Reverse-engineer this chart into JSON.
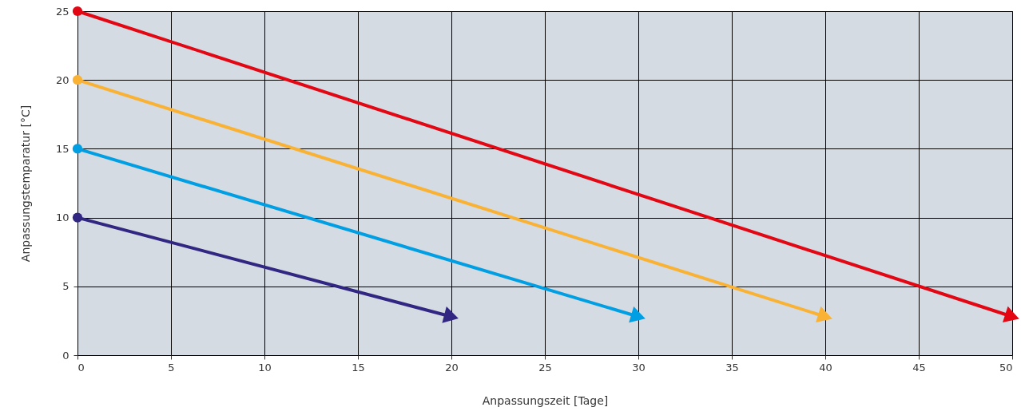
{
  "chart_data": {
    "type": "line",
    "xlabel": "Anpassungszeit [Tage]",
    "ylabel": "Anpassungstemparatur [°C]",
    "xlim": [
      0,
      50
    ],
    "xticks": [
      0,
      5,
      10,
      15,
      20,
      25,
      30,
      35,
      40,
      45,
      50
    ],
    "ylim": [
      0,
      25
    ],
    "yticks": [
      0,
      5,
      10,
      15,
      20,
      25
    ],
    "grid": true,
    "marker": "circle",
    "line_style": "solid",
    "series": [
      {
        "color": "#e30613",
        "x": [
          0,
          50
        ],
        "values": [
          25,
          2.8
        ]
      },
      {
        "color": "#f9b233",
        "x": [
          0,
          40
        ],
        "values": [
          20,
          2.8
        ]
      },
      {
        "color": "#009fe3",
        "x": [
          0,
          30
        ],
        "values": [
          15,
          2.8
        ]
      },
      {
        "color": "#312783",
        "x": [
          0,
          20
        ],
        "values": [
          10,
          2.8
        ]
      }
    ]
  }
}
